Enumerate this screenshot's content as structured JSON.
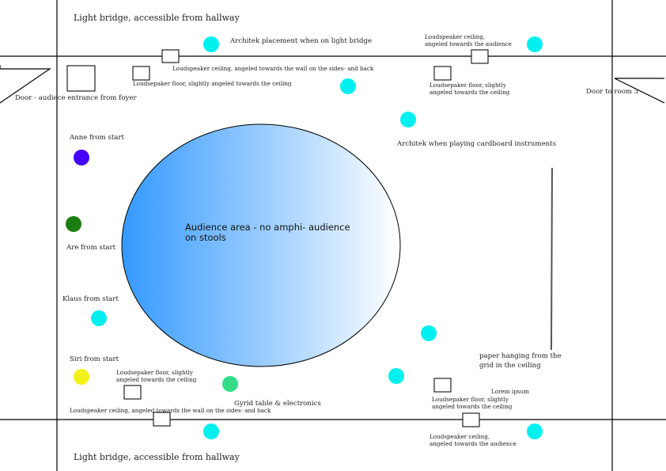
{
  "colors": {
    "performer_cyan": "#00f0f0",
    "anne": "#4400ff",
    "are": "#1a7f10",
    "siri": "#f2f21a",
    "gyrid": "#33dd88",
    "audience_gradient_start": "#3399ff",
    "audience_gradient_end": "#ffffff"
  },
  "labels": {
    "bridge_top": "Light bridge, accessible from hallway",
    "bridge_bottom": "Light bridge, accessible from hallway",
    "architek_bridge": "Architek placement when on light bridge",
    "ls_ceiling_top_left": "Loudspeaker ceiling, angeled towards the wall on the sides- and back",
    "ls_floor_top_left": "Loudsepaker floor, slightly angeled towards the ceiling",
    "door_foyer": "Door - audiece entrance from foyer",
    "ls_ceiling_top_right": "Loudspeaker ceiling,\nangeled towards the audience",
    "ls_floor_top_right": "Loudsepaker floor, slightly\nangeled towards the ceiling",
    "door_room3": "Door to room 3",
    "architek_cardboard": "Architek when playing cardboard instruments",
    "anne": "Anne from start",
    "are": "Are from start",
    "klaus": "Klaus from start",
    "siri": "Siri from start",
    "audience_area": "Audience area - no amphi- audience\non stools",
    "paper": "paper hanging from the\ngrid in the ceiling",
    "ls_floor_bottom_left": "Loudsepaker floor, slightly\nangeled towards the ceiling",
    "gyrid": "Gyrid table & electronics",
    "ls_ceiling_bottom_left": "Loudspeaker ceiling, angeled towards the wall on the sides- and back",
    "lorem": "Lorem ipsum",
    "ls_floor_bottom_right": "Loudsepaker floor, slightly\nangeled towards the ceiling",
    "ls_ceiling_bottom_right": "Loudspeaker ceiling,\nangeled towards the audience"
  }
}
